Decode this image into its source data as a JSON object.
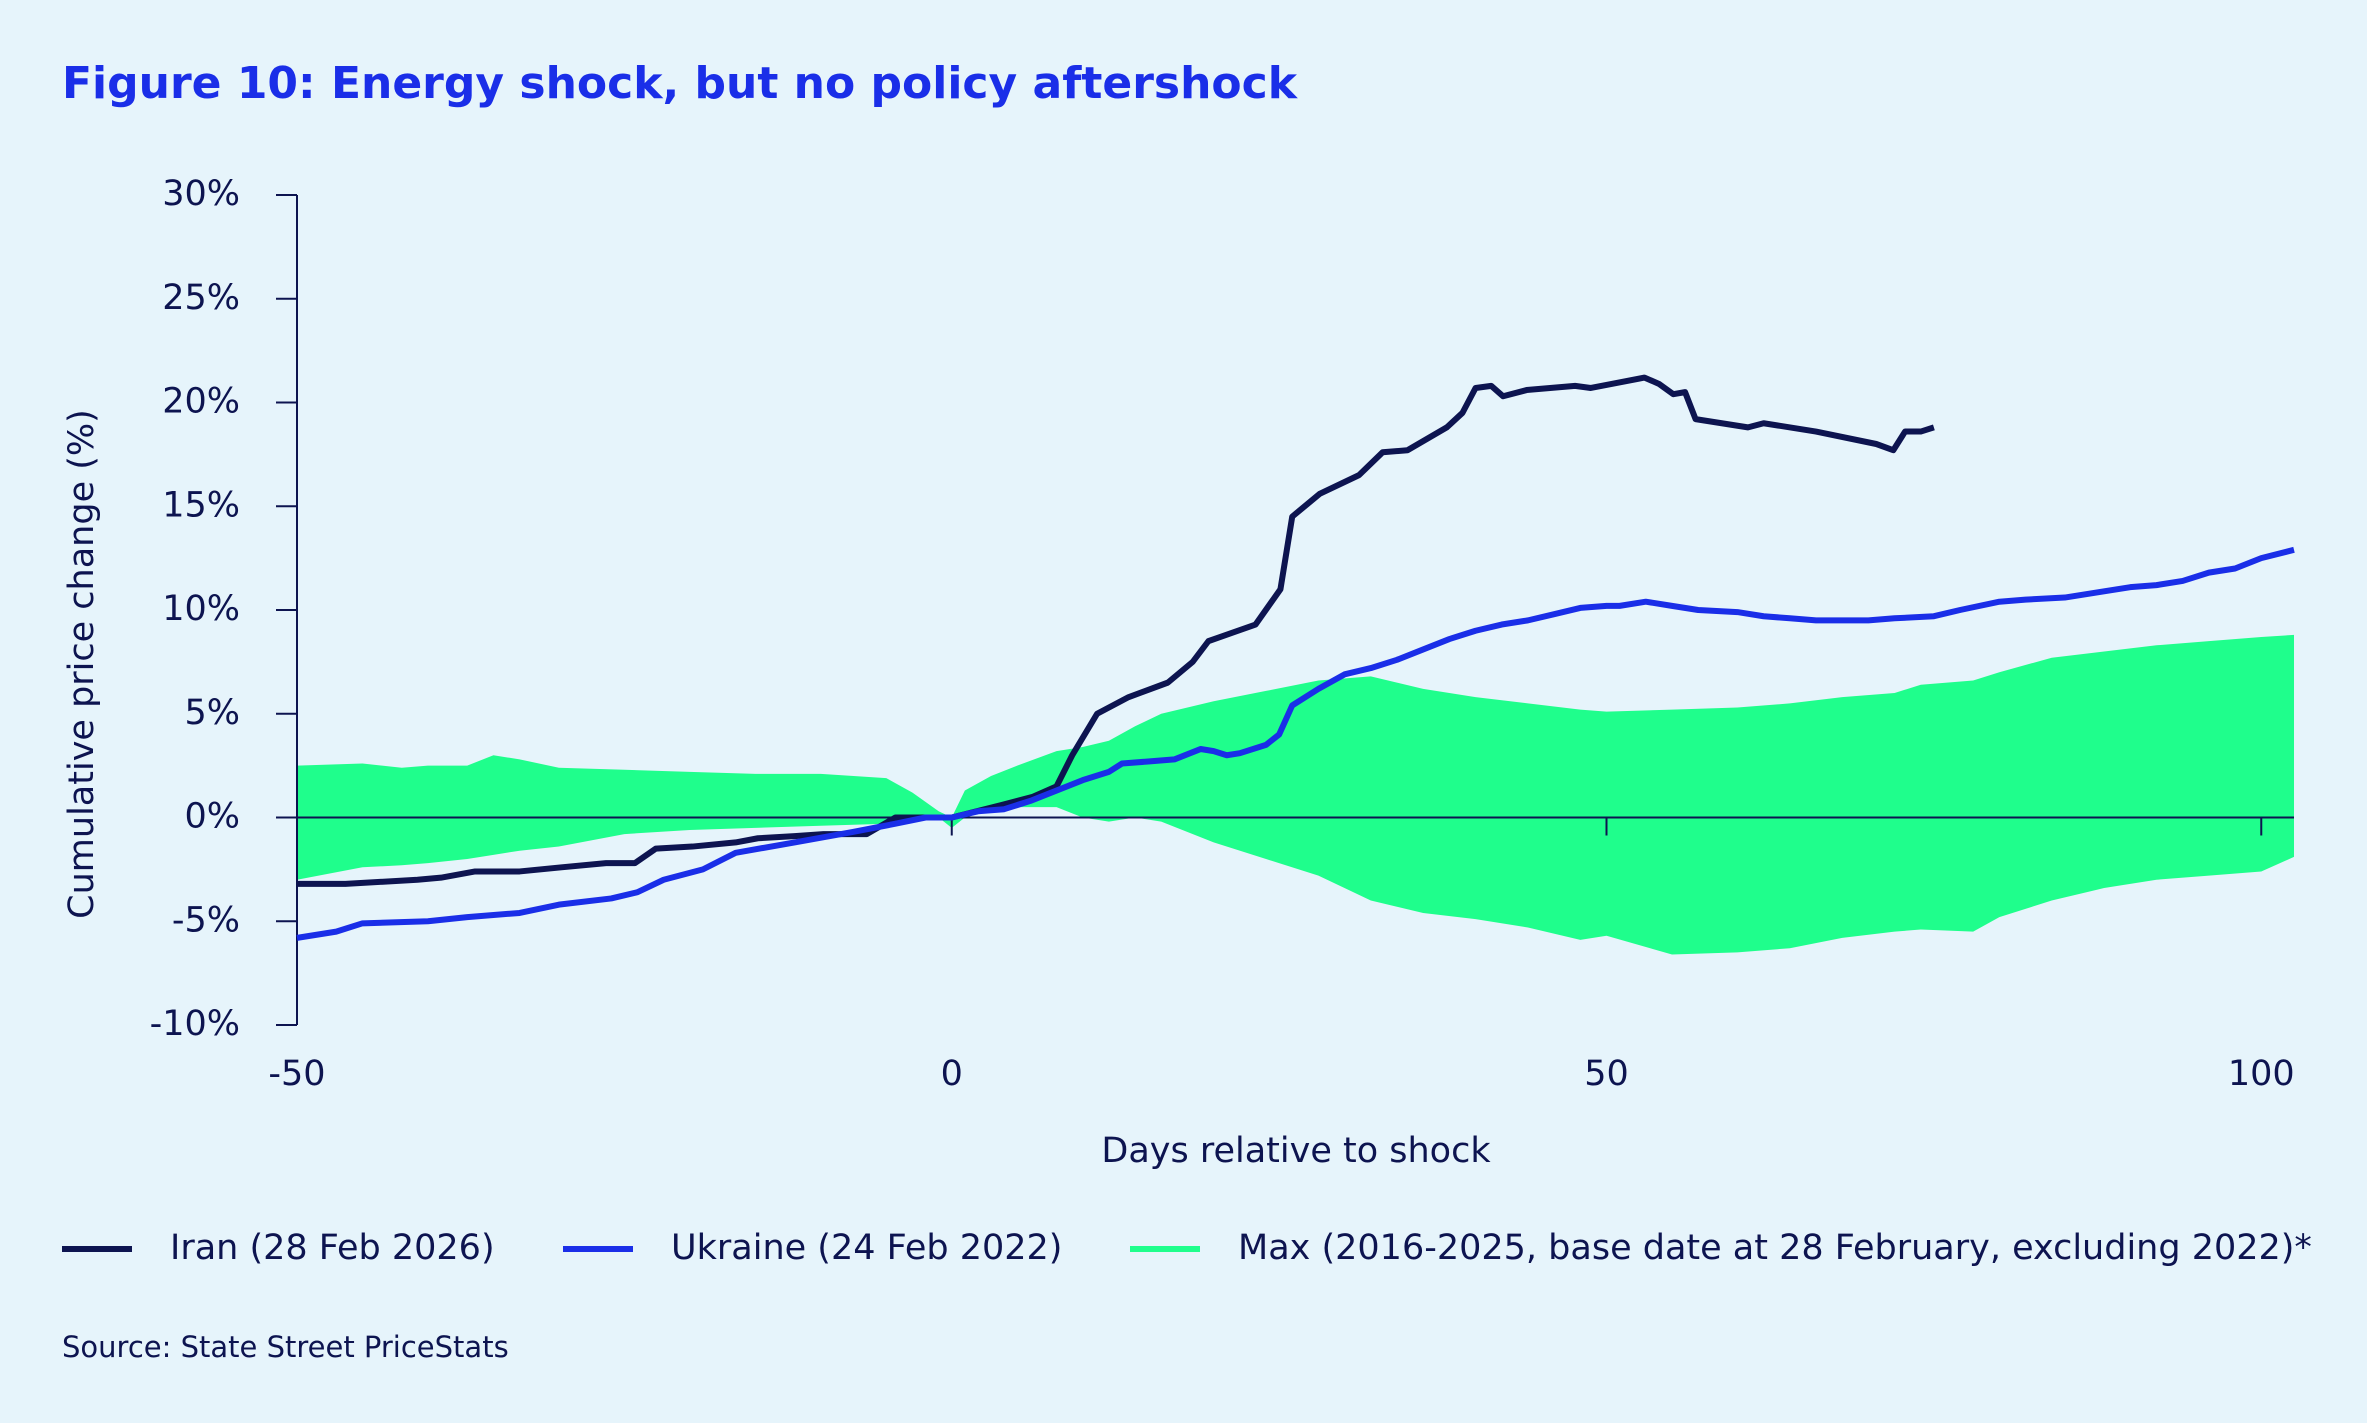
{
  "chart_data": {
    "type": "line",
    "title": "Figure 10: Energy shock, but no policy aftershock",
    "x_label": "Days relative to shock",
    "y_label": "Cumulative price change (%)",
    "source": "Source: State Street PriceStats",
    "xlim": [
      -50,
      102.5
    ],
    "xticks": [
      -50,
      0,
      50,
      100
    ],
    "ylim": [
      -10,
      30
    ],
    "yticks": [
      {
        "value": -10,
        "label": "-10%"
      },
      {
        "value": -5,
        "label": "-5%"
      },
      {
        "value": 0,
        "label": "0%"
      },
      {
        "value": 5,
        "label": "5%"
      },
      {
        "value": 10,
        "label": "10%"
      },
      {
        "value": 15,
        "label": "15%"
      },
      {
        "value": 20,
        "label": "20%"
      },
      {
        "value": 25,
        "label": "25%"
      },
      {
        "value": 30,
        "label": "30%"
      }
    ],
    "series": [
      {
        "name": "Iran (28 Feb 2026)",
        "color": "#0d1450",
        "x": [
          -50,
          -46.3,
          -40.8,
          -39,
          -36.4,
          -33,
          -29.8,
          -26.4,
          -24.2,
          -22.6,
          -19.8,
          -16.5,
          -14.8,
          -12,
          -9.8,
          -6.5,
          -4.3,
          0,
          1.9,
          3.8,
          6.2,
          8,
          9.2,
          11.1,
          13.5,
          16.5,
          18.4,
          19.6,
          23.2,
          25.1,
          26,
          28.1,
          31.1,
          32.9,
          34.8,
          37.8,
          39,
          40,
          41.2,
          42.1,
          43.9,
          47.6,
          48.8,
          52.9,
          54,
          55.1,
          56,
          56.8,
          60.8,
          62,
          66,
          70.6,
          71.9,
          72.8,
          74,
          75
        ],
        "values": [
          -3.2,
          -3.2,
          -3.0,
          -2.9,
          -2.6,
          -2.6,
          -2.4,
          -2.2,
          -2.2,
          -1.5,
          -1.4,
          -1.2,
          -1.0,
          -0.9,
          -0.8,
          -0.8,
          0,
          0,
          0.3,
          0.6,
          1.0,
          1.5,
          3.0,
          5.0,
          5.8,
          6.5,
          7.5,
          8.5,
          9.3,
          11.0,
          14.5,
          15.6,
          16.5,
          17.6,
          17.7,
          18.8,
          19.5,
          20.7,
          20.8,
          20.3,
          20.6,
          20.8,
          20.7,
          21.2,
          20.9,
          20.4,
          20.5,
          19.2,
          18.8,
          19.0,
          18.6,
          18.0,
          17.7,
          18.6,
          18.6,
          18.8
        ]
      },
      {
        "name": "Ukraine (24 Feb 2022)",
        "color": "#1a2ee8",
        "x": [
          -50,
          -47,
          -45,
          -40,
          -37,
          -33,
          -30,
          -26,
          -24,
          -22,
          -19,
          -16.5,
          -12,
          -7.6,
          -4.3,
          -2,
          0,
          2,
          4,
          6,
          8,
          10,
          12,
          13,
          15,
          17,
          19,
          20,
          21,
          22,
          24,
          25,
          26,
          28,
          30,
          32,
          34,
          36,
          38,
          40,
          42,
          44,
          46,
          48,
          50,
          51,
          53,
          55,
          57,
          60,
          62,
          64,
          66,
          70,
          72,
          75,
          77,
          80,
          82,
          85,
          88,
          90,
          92,
          94,
          96,
          98,
          100,
          102.5
        ],
        "values": [
          -5.8,
          -5.5,
          -5.1,
          -5.0,
          -4.8,
          -4.6,
          -4.2,
          -3.9,
          -3.6,
          -3.0,
          -2.5,
          -1.7,
          -1.2,
          -0.7,
          -0.3,
          0,
          0,
          0.3,
          0.4,
          0.8,
          1.3,
          1.8,
          2.2,
          2.6,
          2.7,
          2.8,
          3.3,
          3.2,
          3.0,
          3.1,
          3.5,
          4.0,
          5.4,
          6.2,
          6.9,
          7.2,
          7.6,
          8.1,
          8.6,
          9.0,
          9.3,
          9.5,
          9.8,
          10.1,
          10.2,
          10.2,
          10.4,
          10.2,
          10.0,
          9.9,
          9.7,
          9.6,
          9.5,
          9.5,
          9.6,
          9.7,
          10.0,
          10.4,
          10.5,
          10.6,
          10.9,
          11.1,
          11.2,
          11.4,
          11.8,
          12.0,
          12.5,
          12.9
        ]
      },
      {
        "name": "Max (2016-2025, base date at 28 February, excluding 2022)*",
        "color": "#1ffe8c",
        "x": [
          -50,
          -45,
          -42,
          -40,
          -37,
          -35,
          -33,
          -30,
          -25,
          -20,
          -15,
          -10,
          -5,
          -3,
          -1,
          0,
          1,
          3,
          5,
          8,
          10,
          12,
          14,
          16,
          20,
          24,
          28,
          32,
          36,
          40,
          44,
          48,
          50,
          55,
          60,
          64,
          68,
          72,
          74,
          78,
          80,
          84,
          88,
          92,
          96,
          100,
          102.5
        ],
        "values": [
          2.5,
          2.6,
          2.4,
          2.5,
          2.5,
          3.0,
          2.8,
          2.4,
          2.3,
          2.2,
          2.1,
          2.1,
          1.9,
          1.2,
          0.3,
          0,
          1.3,
          2.0,
          2.5,
          3.2,
          3.4,
          3.7,
          4.4,
          5.0,
          5.6,
          6.1,
          6.6,
          6.8,
          6.2,
          5.8,
          5.5,
          5.2,
          5.1,
          5.2,
          5.3,
          5.5,
          5.8,
          6.0,
          6.4,
          6.6,
          7.0,
          7.7,
          8.0,
          8.3,
          8.5,
          8.7,
          8.8
        ],
        "lower": [
          -3.0,
          -2.4,
          -2.3,
          -2.2,
          -2.0,
          -1.8,
          -1.6,
          -1.4,
          -0.8,
          -0.6,
          -0.5,
          -0.4,
          -0.3,
          -0.2,
          0,
          -0.5,
          0,
          0.5,
          0.5,
          0.5,
          0,
          -0.2,
          0,
          -0.2,
          -1.2,
          -2.0,
          -2.8,
          -4.0,
          -4.6,
          -4.9,
          -5.3,
          -5.9,
          -5.7,
          -6.6,
          -6.5,
          -6.3,
          -5.8,
          -5.5,
          -5.4,
          -5.5,
          -4.8,
          -4.0,
          -3.4,
          -3.0,
          -2.8,
          -2.6,
          -1.9
        ]
      }
    ]
  }
}
